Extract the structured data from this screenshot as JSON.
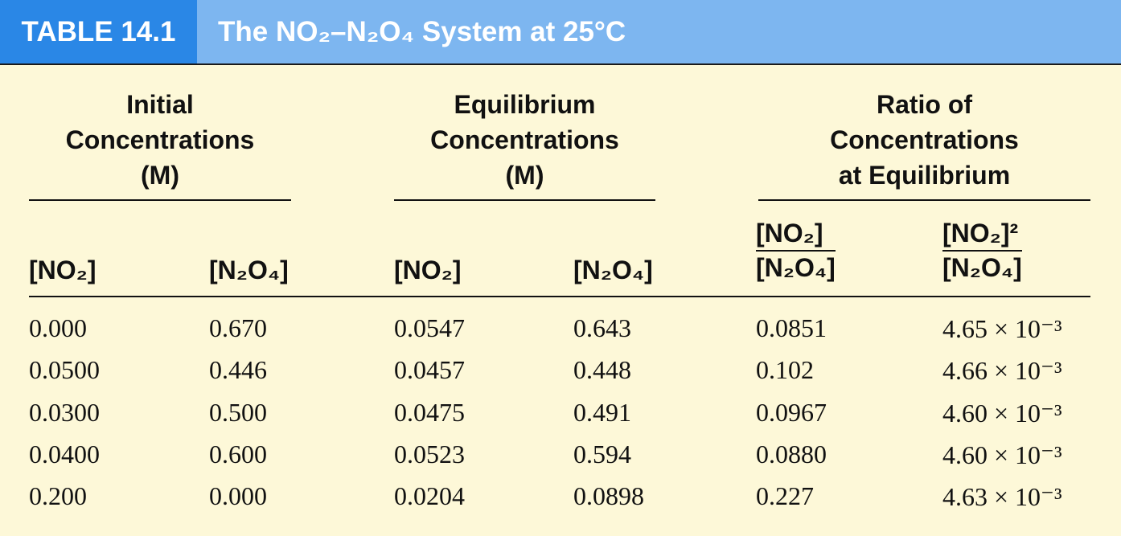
{
  "header": {
    "label": "TABLE 14.1",
    "title": "The NO₂–N₂O₄ System at 25°C"
  },
  "table": {
    "groups": [
      {
        "lines": [
          "Initial",
          "Concentrations",
          "(M)"
        ]
      },
      {
        "lines": [
          "Equilibrium",
          "Concentrations",
          "(M)"
        ]
      },
      {
        "lines": [
          "Ratio of",
          "Concentrations",
          "at Equilibrium"
        ]
      }
    ],
    "columns": [
      "[NO₂]",
      "[N₂O₄]",
      "[NO₂]",
      "[N₂O₄]",
      {
        "numerator": "[NO₂]",
        "denominator": "[N₂O₄]"
      },
      {
        "numerator": "[NO₂]²",
        "denominator": "[N₂O₄]"
      }
    ],
    "rows": [
      [
        "0.000",
        "0.670",
        "0.0547",
        "0.643",
        "0.0851",
        "4.65 × 10⁻³"
      ],
      [
        "0.0500",
        "0.446",
        "0.0457",
        "0.448",
        "0.102",
        "4.66 × 10⁻³"
      ],
      [
        "0.0300",
        "0.500",
        "0.0475",
        "0.491",
        "0.0967",
        "4.60 × 10⁻³"
      ],
      [
        "0.0400",
        "0.600",
        "0.0523",
        "0.594",
        "0.0880",
        "4.60 × 10⁻³"
      ],
      [
        "0.200",
        "0.000",
        "0.0204",
        "0.0898",
        "0.227",
        "4.63 × 10⁻³"
      ]
    ]
  }
}
